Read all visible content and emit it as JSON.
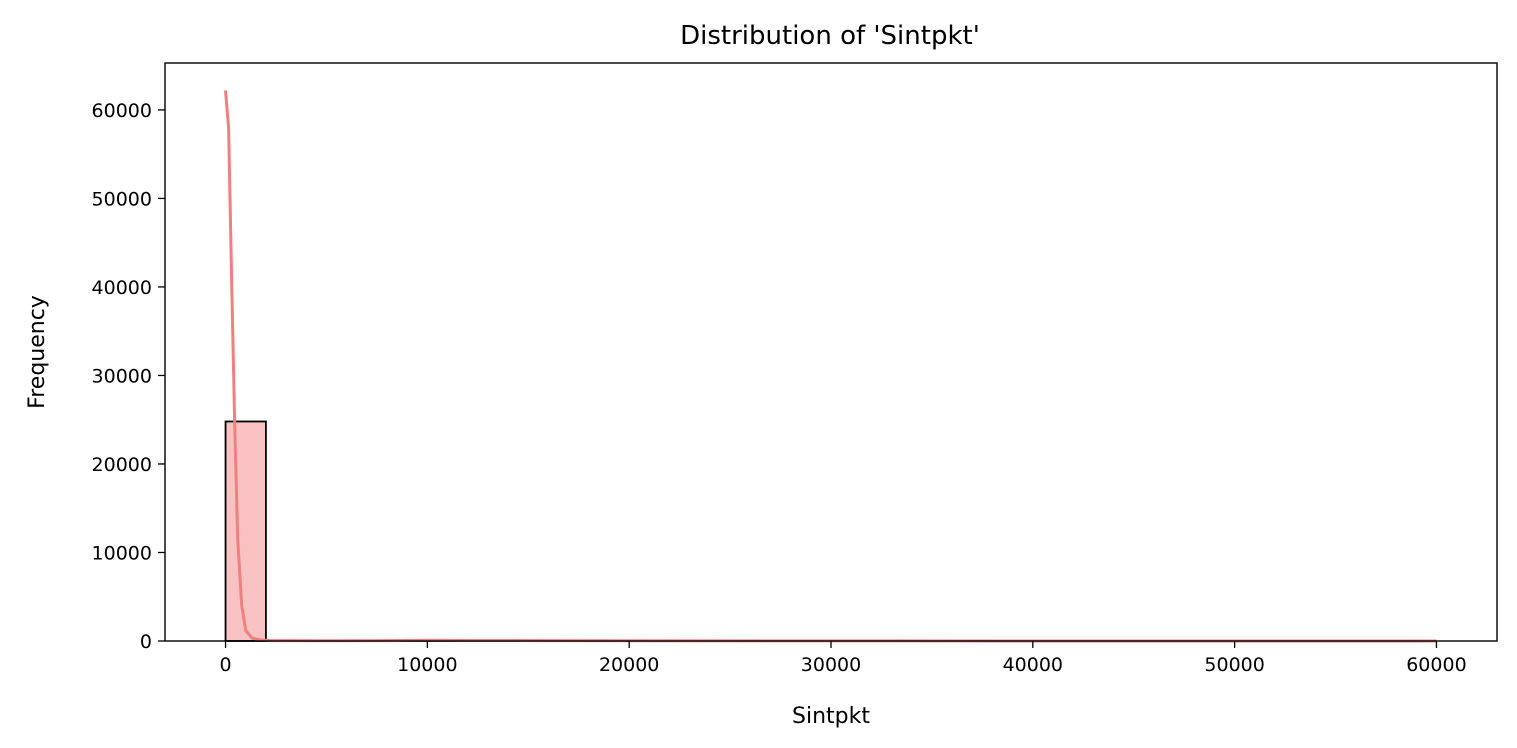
{
  "chart_data": {
    "type": "bar",
    "title": "Distribution of 'Sintpkt'",
    "xlabel": "Sintpkt",
    "ylabel": "Frequency",
    "xlim": [
      -3000,
      63000
    ],
    "ylim": [
      0,
      65300
    ],
    "xticks": [
      0,
      10000,
      20000,
      30000,
      40000,
      50000,
      60000
    ],
    "yticks": [
      0,
      10000,
      20000,
      30000,
      40000,
      50000,
      60000
    ],
    "bins": [
      {
        "x0": 0,
        "x1": 2000,
        "value": 24800
      },
      {
        "x0": 2000,
        "x1": 4000,
        "value": 30
      },
      {
        "x0": 4000,
        "x1": 6000,
        "value": 10
      },
      {
        "x0": 6000,
        "x1": 8000,
        "value": 5
      },
      {
        "x0": 8000,
        "x1": 10000,
        "value": 40
      },
      {
        "x0": 10000,
        "x1": 12000,
        "value": 20
      },
      {
        "x0": 12000,
        "x1": 14000,
        "value": 5
      },
      {
        "x0": 14000,
        "x1": 16000,
        "value": 15
      },
      {
        "x0": 16000,
        "x1": 18000,
        "value": 3
      }
    ],
    "kde": {
      "x": [
        0,
        150,
        300,
        450,
        600,
        800,
        1000,
        1300,
        1700,
        2200,
        3000,
        5000,
        8000,
        10000,
        12000,
        16000,
        20000,
        30000,
        40000,
        50000,
        60000
      ],
      "y": [
        62200,
        58000,
        41000,
        25000,
        11500,
        4000,
        1200,
        350,
        120,
        60,
        40,
        30,
        50,
        90,
        60,
        40,
        20,
        10,
        5,
        5,
        5
      ]
    },
    "colors": {
      "bar_fill": "#f8c2c2",
      "bar_edge": "#000000",
      "kde_line": "#f08080"
    },
    "grid": false
  }
}
